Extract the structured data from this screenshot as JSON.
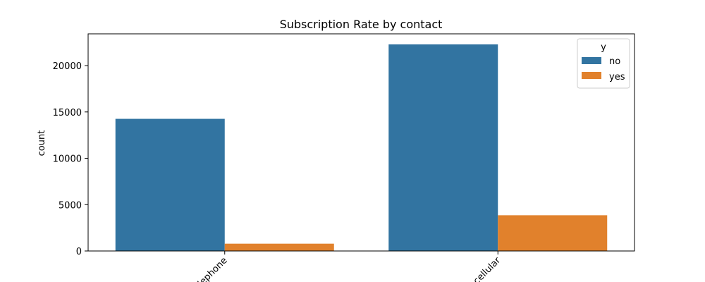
{
  "chart_data": {
    "type": "bar",
    "title": "Subscription Rate by contact",
    "xlabel": "",
    "ylabel": "count",
    "categories": [
      "telephone",
      "cellular"
    ],
    "series": [
      {
        "name": "no",
        "values": [
          14257,
          22291
        ],
        "color": "#3274a1"
      },
      {
        "name": "yes",
        "values": [
          787,
          3853
        ],
        "color": "#e1812c"
      }
    ],
    "yticks": [
      0,
      5000,
      10000,
      15000,
      20000
    ],
    "ytick_labels": [
      "0",
      "5000",
      "10000",
      "15000",
      "20000"
    ],
    "ylim": [
      0,
      23427
    ],
    "grid": false,
    "legend": {
      "title": "y",
      "position": "top-right"
    }
  }
}
